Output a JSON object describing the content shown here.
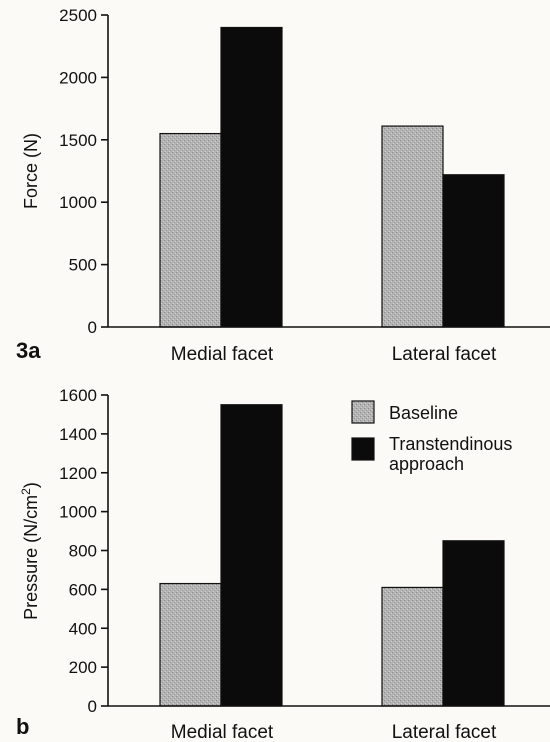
{
  "colors": {
    "baseline_fill": "#b3b3b3",
    "transtendinous_fill": "#0b0b0b",
    "background": "#fbfaf6"
  },
  "legend": {
    "items": [
      {
        "label": "Baseline",
        "series": "baseline"
      },
      {
        "label": "Transtendinous approach",
        "lines": [
          "Transtendinous",
          "approach"
        ],
        "series": "transtendinous"
      }
    ]
  },
  "chart_data": [
    {
      "panel_label": "3a",
      "type": "bar",
      "categories": [
        "Medial facet",
        "Lateral facet"
      ],
      "series": [
        {
          "name": "Baseline",
          "values": [
            1550,
            1610
          ]
        },
        {
          "name": "Transtendinous approach",
          "values": [
            2400,
            1220
          ]
        }
      ],
      "ylabel": "Force (N)",
      "ylim": [
        0,
        2500
      ],
      "yticks": [
        0,
        500,
        1000,
        1500,
        2000,
        2500
      ],
      "grid": false
    },
    {
      "panel_label": "b",
      "type": "bar",
      "categories": [
        "Medial facet",
        "Lateral facet"
      ],
      "series": [
        {
          "name": "Baseline",
          "values": [
            630,
            610
          ]
        },
        {
          "name": "Transtendinous approach",
          "values": [
            1550,
            850
          ]
        }
      ],
      "ylabel": "Pressure (N/cm²)",
      "ylabel_parts": {
        "base": "Pressure (N/cm",
        "sup": "2",
        "end": ")"
      },
      "ylim": [
        0,
        1600
      ],
      "yticks": [
        0,
        200,
        400,
        600,
        800,
        1000,
        1200,
        1400,
        1600
      ],
      "grid": false,
      "legend_position": "top-right"
    }
  ]
}
